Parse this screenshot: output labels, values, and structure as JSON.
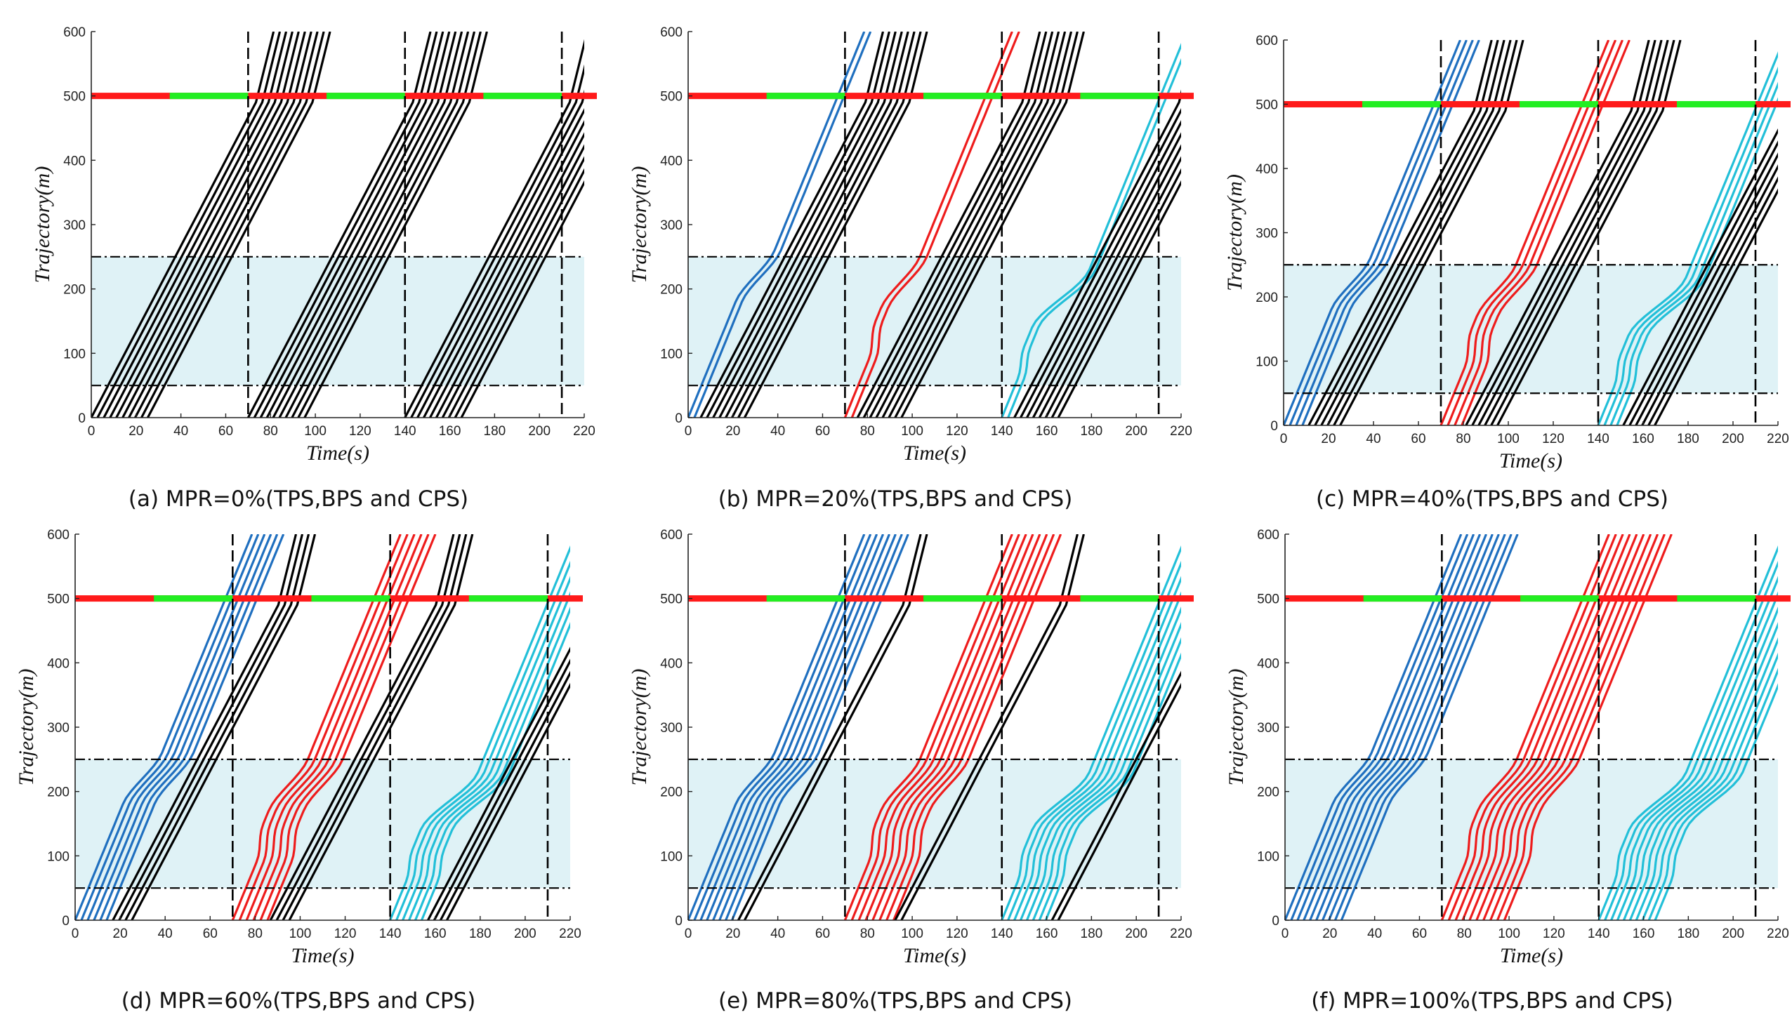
{
  "figure": {
    "panels": [
      {
        "caption": "(a) MPR=0%(TPS,BPS and CPS)"
      },
      {
        "caption": "(b) MPR=20%(TPS,BPS and CPS)"
      },
      {
        "caption": "(c) MPR=40%(TPS,BPS and CPS)"
      },
      {
        "caption": "(d) MPR=60%(TPS,BPS and CPS)"
      },
      {
        "caption": "(e) MPR=80%(TPS,BPS and CPS)"
      },
      {
        "caption": "(f) MPR=100%(TPS,BPS and CPS)"
      }
    ]
  },
  "colors": {
    "red_signal": "#ff1a1a",
    "green_signal": "#22ee22",
    "hdv": "#000000",
    "cav_tps": "#1f6fbf",
    "cav_bps": "#ee1c1c",
    "cav_cps": "#22bfd8",
    "control_zone_fill": "#dff2f6"
  },
  "chart_data": [
    {
      "type": "line",
      "title": "",
      "caption": "(a) MPR=0%(TPS,BPS and CPS)",
      "xlabel": "Time(s)",
      "ylabel": "Trajectory(m)",
      "xlim": [
        0,
        220
      ],
      "ylim": [
        0,
        600
      ],
      "xticks": [
        0,
        20,
        40,
        60,
        80,
        100,
        120,
        140,
        160,
        180,
        200,
        220
      ],
      "yticks": [
        0,
        100,
        200,
        300,
        400,
        500,
        600
      ],
      "signal": {
        "position": 500,
        "cycle_boundaries": [
          70,
          140,
          210
        ],
        "green_intervals": [
          [
            35,
            70
          ],
          [
            105,
            140
          ],
          [
            175,
            210
          ]
        ]
      },
      "control_zone": [
        50,
        250
      ],
      "mpr": 0,
      "series": [
        {
          "name": "TPS",
          "vehicles": 10,
          "entry_start": 0,
          "cav_count": 0
        },
        {
          "name": "BPS",
          "vehicles": 10,
          "entry_start": 70,
          "cav_count": 0
        },
        {
          "name": "CPS",
          "vehicles": 10,
          "entry_start": 140,
          "cav_count": 0
        }
      ]
    },
    {
      "type": "line",
      "title": "",
      "caption": "(b) MPR=20%(TPS,BPS and CPS)",
      "xlabel": "Time(s)",
      "ylabel": "Trajectory(m)",
      "xlim": [
        0,
        220
      ],
      "ylim": [
        0,
        600
      ],
      "xticks": [
        0,
        20,
        40,
        60,
        80,
        100,
        120,
        140,
        160,
        180,
        200,
        220
      ],
      "yticks": [
        0,
        100,
        200,
        300,
        400,
        500,
        600
      ],
      "signal": {
        "position": 500,
        "cycle_boundaries": [
          70,
          140,
          210
        ],
        "green_intervals": [
          [
            35,
            70
          ],
          [
            105,
            140
          ],
          [
            175,
            210
          ]
        ]
      },
      "control_zone": [
        50,
        250
      ],
      "mpr": 20,
      "series": [
        {
          "name": "TPS",
          "vehicles": 10,
          "entry_start": 0,
          "cav_count": 2
        },
        {
          "name": "BPS",
          "vehicles": 10,
          "entry_start": 70,
          "cav_count": 2
        },
        {
          "name": "CPS",
          "vehicles": 10,
          "entry_start": 140,
          "cav_count": 2
        }
      ]
    },
    {
      "type": "line",
      "title": "",
      "caption": "(c) MPR=40%(TPS,BPS and CPS)",
      "xlabel": "Time(s)",
      "ylabel": "Trajectory(m)",
      "xlim": [
        0,
        220
      ],
      "ylim": [
        0,
        600
      ],
      "xticks": [
        0,
        20,
        40,
        60,
        80,
        100,
        120,
        140,
        160,
        180,
        200,
        220
      ],
      "yticks": [
        0,
        100,
        200,
        300,
        400,
        500,
        600
      ],
      "signal": {
        "position": 500,
        "cycle_boundaries": [
          70,
          140,
          210
        ],
        "green_intervals": [
          [
            35,
            70
          ],
          [
            105,
            140
          ],
          [
            175,
            210
          ]
        ]
      },
      "control_zone": [
        50,
        250
      ],
      "mpr": 40,
      "series": [
        {
          "name": "TPS",
          "vehicles": 10,
          "entry_start": 0,
          "cav_count": 4
        },
        {
          "name": "BPS",
          "vehicles": 10,
          "entry_start": 70,
          "cav_count": 4
        },
        {
          "name": "CPS",
          "vehicles": 10,
          "entry_start": 140,
          "cav_count": 4
        }
      ]
    },
    {
      "type": "line",
      "title": "",
      "caption": "(d) MPR=60%(TPS,BPS and CPS)",
      "xlabel": "Time(s)",
      "ylabel": "Trajectory(m)",
      "xlim": [
        0,
        220
      ],
      "ylim": [
        0,
        600
      ],
      "xticks": [
        0,
        20,
        40,
        60,
        80,
        100,
        120,
        140,
        160,
        180,
        200,
        220
      ],
      "yticks": [
        0,
        100,
        200,
        300,
        400,
        500,
        600
      ],
      "signal": {
        "position": 500,
        "cycle_boundaries": [
          70,
          140,
          210
        ],
        "green_intervals": [
          [
            35,
            70
          ],
          [
            105,
            140
          ],
          [
            175,
            210
          ]
        ]
      },
      "control_zone": [
        50,
        250
      ],
      "mpr": 60,
      "series": [
        {
          "name": "TPS",
          "vehicles": 10,
          "entry_start": 0,
          "cav_count": 6
        },
        {
          "name": "BPS",
          "vehicles": 10,
          "entry_start": 70,
          "cav_count": 6
        },
        {
          "name": "CPS",
          "vehicles": 10,
          "entry_start": 140,
          "cav_count": 6
        }
      ]
    },
    {
      "type": "line",
      "title": "",
      "caption": "(e) MPR=80%(TPS,BPS and CPS)",
      "xlabel": "Time(s)",
      "ylabel": "Trajectory(m)",
      "xlim": [
        0,
        220
      ],
      "ylim": [
        0,
        600
      ],
      "xticks": [
        0,
        20,
        40,
        60,
        80,
        100,
        120,
        140,
        160,
        180,
        200,
        220
      ],
      "yticks": [
        0,
        100,
        200,
        300,
        400,
        500,
        600
      ],
      "signal": {
        "position": 500,
        "cycle_boundaries": [
          70,
          140,
          210
        ],
        "green_intervals": [
          [
            35,
            70
          ],
          [
            105,
            140
          ],
          [
            175,
            210
          ]
        ]
      },
      "control_zone": [
        50,
        250
      ],
      "mpr": 80,
      "series": [
        {
          "name": "TPS",
          "vehicles": 10,
          "entry_start": 0,
          "cav_count": 8
        },
        {
          "name": "BPS",
          "vehicles": 10,
          "entry_start": 70,
          "cav_count": 8
        },
        {
          "name": "CPS",
          "vehicles": 10,
          "entry_start": 140,
          "cav_count": 8
        }
      ]
    },
    {
      "type": "line",
      "title": "",
      "caption": "(f) MPR=100%(TPS,BPS and CPS)",
      "xlabel": "Time(s)",
      "ylabel": "Trajectory(m)",
      "xlim": [
        0,
        220
      ],
      "ylim": [
        0,
        600
      ],
      "xticks": [
        0,
        20,
        40,
        60,
        80,
        100,
        120,
        140,
        160,
        180,
        200,
        220
      ],
      "yticks": [
        0,
        100,
        200,
        300,
        400,
        500,
        600
      ],
      "signal": {
        "position": 500,
        "cycle_boundaries": [
          70,
          140,
          210
        ],
        "green_intervals": [
          [
            35,
            70
          ],
          [
            105,
            140
          ],
          [
            175,
            210
          ]
        ]
      },
      "control_zone": [
        50,
        250
      ],
      "mpr": 100,
      "series": [
        {
          "name": "TPS",
          "vehicles": 10,
          "entry_start": 0,
          "cav_count": 10
        },
        {
          "name": "BPS",
          "vehicles": 10,
          "entry_start": 70,
          "cav_count": 10
        },
        {
          "name": "CPS",
          "vehicles": 10,
          "entry_start": 140,
          "cav_count": 10
        }
      ]
    }
  ]
}
